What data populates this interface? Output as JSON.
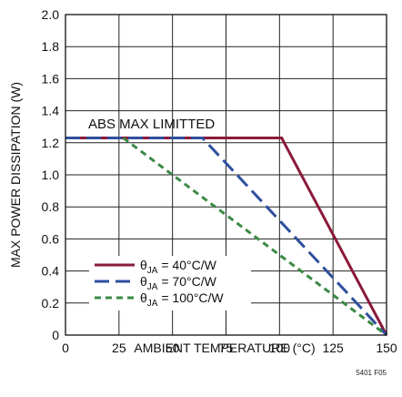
{
  "chart_data": {
    "type": "line",
    "title": "",
    "xlabel": "AMBIENT TEMPERATURE (°C)",
    "ylabel": "MAX POWER DISSIPATION (W)",
    "xlim": [
      0,
      150
    ],
    "ylim": [
      0,
      2.0
    ],
    "xticks": [
      "0",
      "25",
      "50",
      "75",
      "100",
      "125",
      "150"
    ],
    "yticks": [
      "0",
      "0.2",
      "0.4",
      "0.6",
      "0.8",
      "1.0",
      "1.2",
      "1.4",
      "1.6",
      "1.8",
      "2.0"
    ],
    "grid": true,
    "legend_position": "bottom-left",
    "annotation": "ABS MAX LIMITTED",
    "figure_id": "5401 F05",
    "series": [
      {
        "name": "θJA = 40°C/W",
        "legend_main": "θ",
        "legend_sub": "JA",
        "legend_rest": " = 40°C/W",
        "color": "#8b1a3a",
        "dash": "solid",
        "x": [
          0,
          101,
          150
        ],
        "y": [
          1.23,
          1.23,
          0
        ]
      },
      {
        "name": "θJA = 70°C/W",
        "legend_main": "θ",
        "legend_sub": "JA",
        "legend_rest": " = 70°C/W",
        "color": "#2e4f9e",
        "dash": "long-dash",
        "x": [
          0,
          64,
          150
        ],
        "y": [
          1.23,
          1.23,
          0
        ]
      },
      {
        "name": "θJA = 100°C/W",
        "legend_main": "θ",
        "legend_sub": "JA",
        "legend_rest": " = 100°C/W",
        "color": "#3a8a45",
        "dash": "short-dash",
        "x": [
          27,
          150
        ],
        "y": [
          1.23,
          0
        ]
      }
    ]
  }
}
